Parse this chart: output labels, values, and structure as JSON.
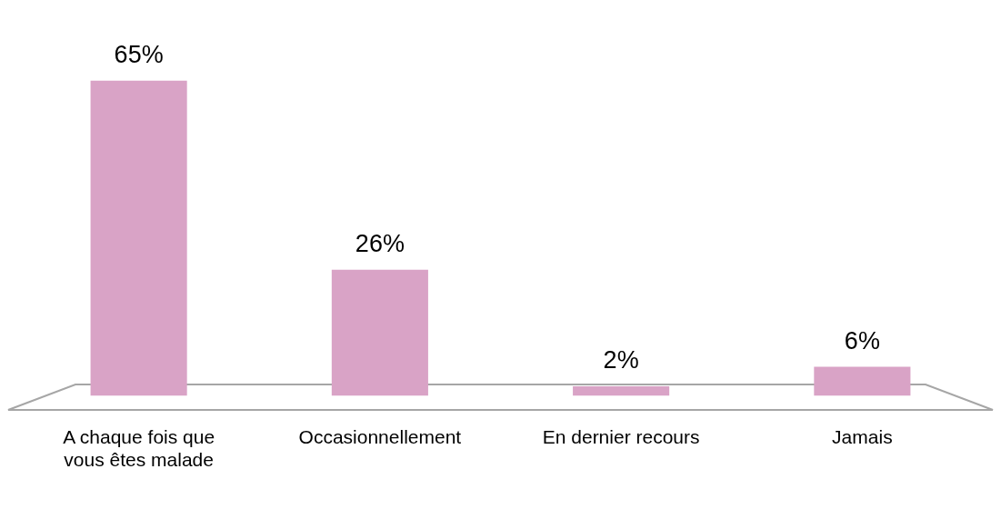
{
  "chart_data": {
    "type": "bar",
    "categories": [
      "A chaque fois que vous êtes malade",
      "Occasionnellement",
      "En dernier recours",
      "Jamais"
    ],
    "values": [
      65,
      26,
      2,
      6
    ],
    "color": "#d9a3c6",
    "value_labels": [
      "65%",
      "26%",
      "2%",
      "6%"
    ],
    "grid": false,
    "legend": false
  }
}
